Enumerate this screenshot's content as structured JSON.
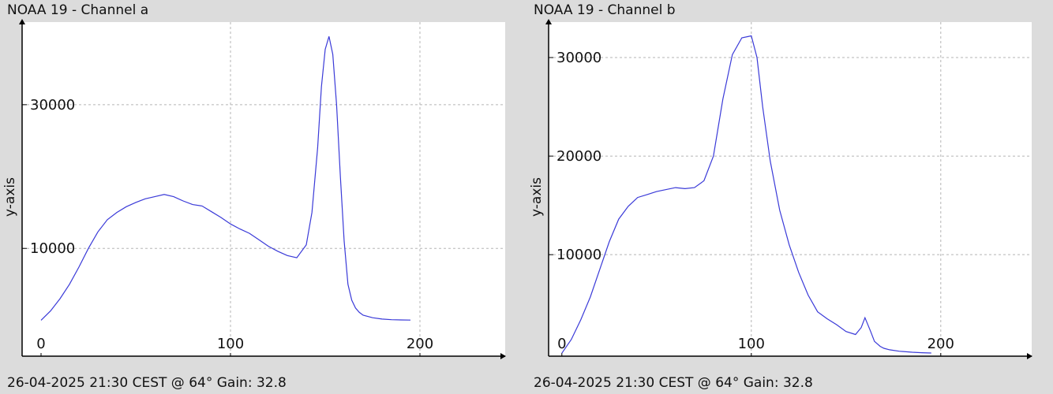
{
  "charts": [
    {
      "title": "NOAA 19 - Channel a",
      "footer": "26-04-2025 21:30 CEST @ 64° Gain: 32.8",
      "chart_data": {
        "type": "line",
        "title": "NOAA 19 - Channel a",
        "xlabel": "",
        "ylabel": "y-axis",
        "xlim": [
          -10,
          245
        ],
        "ylim": [
          -5000,
          41500
        ],
        "x_ticks": [
          0,
          100,
          200
        ],
        "y_ticks": [
          10000,
          30000
        ],
        "x_tick_labels": [
          "0",
          "100",
          "200"
        ],
        "y_tick_labels": [
          "10000",
          "30000"
        ],
        "grid": true,
        "line_color": "#3a3ad8",
        "series": [
          {
            "x": [
              0,
              5,
              10,
              15,
              20,
              25,
              30,
              35,
              40,
              45,
              50,
              55,
              60,
              65,
              70,
              75,
              80,
              85,
              90,
              95,
              100,
              105,
              110,
              115,
              120,
              125,
              130,
              135,
              140,
              143,
              146,
              148,
              150,
              152,
              154,
              156,
              158,
              160,
              162,
              164,
              166,
              168,
              170,
              175,
              180,
              185,
              190,
              195
            ],
            "y": [
              0,
              1300,
              3000,
              5000,
              7400,
              10000,
              12300,
              14000,
              15000,
              15800,
              16400,
              16900,
              17200,
              17500,
              17200,
              16600,
              16100,
              15900,
              15100,
              14300,
              13400,
              12700,
              12100,
              11200,
              10300,
              9600,
              9000,
              8700,
              10500,
              15000,
              24000,
              32500,
              37700,
              39500,
              37000,
              30000,
              20000,
              11000,
              5000,
              2800,
              1700,
              1100,
              700,
              350,
              170,
              80,
              40,
              20
            ]
          }
        ]
      }
    },
    {
      "title": "NOAA 19 - Channel b",
      "footer": "26-04-2025 21:30 CEST @ 64° Gain: 32.8",
      "chart_data": {
        "type": "line",
        "title": "NOAA 19 - Channel b",
        "xlabel": "",
        "ylabel": "y-axis",
        "xlim": [
          -7,
          248
        ],
        "ylim": [
          -300,
          33600
        ],
        "x_ticks": [
          0,
          100,
          200
        ],
        "y_ticks": [
          10000,
          20000,
          30000
        ],
        "x_tick_labels": [
          "0",
          "100",
          "200"
        ],
        "y_tick_labels": [
          "10000",
          "20000",
          "30000"
        ],
        "grid": true,
        "line_color": "#3a3ad8",
        "series": [
          {
            "x": [
              0,
              5,
              10,
              15,
              20,
              25,
              30,
              35,
              40,
              45,
              50,
              55,
              60,
              65,
              70,
              75,
              80,
              85,
              90,
              95,
              100,
              103,
              106,
              110,
              115,
              120,
              125,
              130,
              135,
              140,
              145,
              150,
              155,
              158,
              160,
              163,
              165,
              168,
              170,
              173,
              178,
              185,
              190,
              195
            ],
            "y": [
              0,
              1400,
              3400,
              5700,
              8500,
              11300,
              13600,
              14900,
              15800,
              16100,
              16400,
              16600,
              16800,
              16700,
              16800,
              17500,
              20000,
              25800,
              30300,
              32000,
              32200,
              30000,
              25000,
              19500,
              14500,
              11000,
              8200,
              5900,
              4200,
              3500,
              2900,
              2200,
              1900,
              2600,
              3600,
              2200,
              1200,
              700,
              500,
              350,
              200,
              100,
              50,
              20
            ]
          }
        ]
      }
    }
  ]
}
